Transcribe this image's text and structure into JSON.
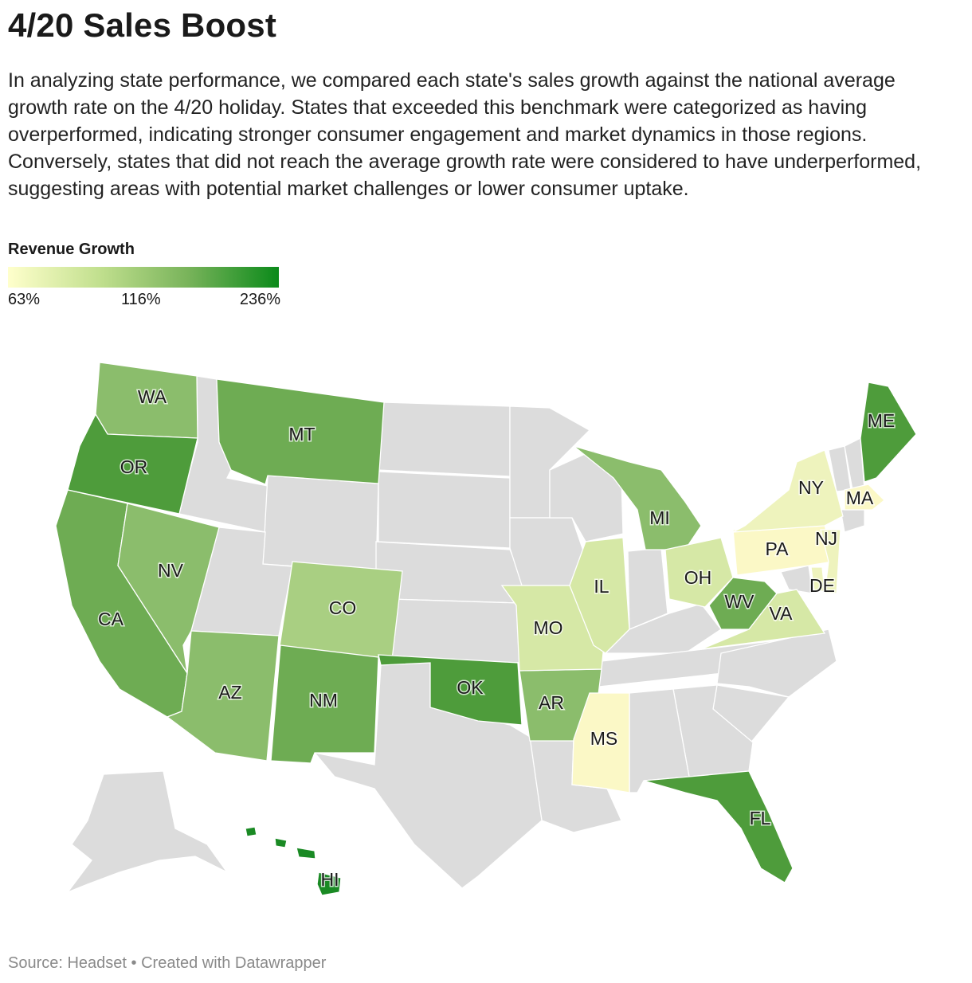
{
  "title": "4/20 Sales Boost",
  "description": "In analyzing state performance, we compared each state's sales growth against the national average growth rate on the 4/20 holiday. States that exceeded this benchmark were categorized as having overperformed, indicating stronger consumer engagement and market dynamics in those regions. Conversely, states that did not reach the average growth rate were considered to have underperformed, suggesting areas with potential market challenges or lower consumer uptake.",
  "legend": {
    "title": "Revenue Growth",
    "min_label": "63%",
    "mid_label": "116%",
    "max_label": "236%",
    "colors": [
      "#ffffcc",
      "#c2e08f",
      "#78b35a",
      "#0b8a1a"
    ]
  },
  "colors": {
    "no_data": "#dcdcdc",
    "scale": {
      "c1": "#fbf8c6",
      "c2": "#eef3bd",
      "c3": "#d6e8a6",
      "c4": "#a9cf82",
      "c5": "#8bbd6c",
      "c6": "#6eac53",
      "c7": "#4e9c3b",
      "c8": "#1a8a24"
    }
  },
  "map": {
    "states_labeled": [
      "WA",
      "OR",
      "CA",
      "NV",
      "MT",
      "CO",
      "AZ",
      "NM",
      "OK",
      "AR",
      "MO",
      "IL",
      "MS",
      "MI",
      "OH",
      "WV",
      "VA",
      "PA",
      "NY",
      "NJ",
      "DE",
      "MA",
      "ME",
      "FL",
      "HI"
    ]
  },
  "source": "Source: Headset • Created with Datawrapper"
}
